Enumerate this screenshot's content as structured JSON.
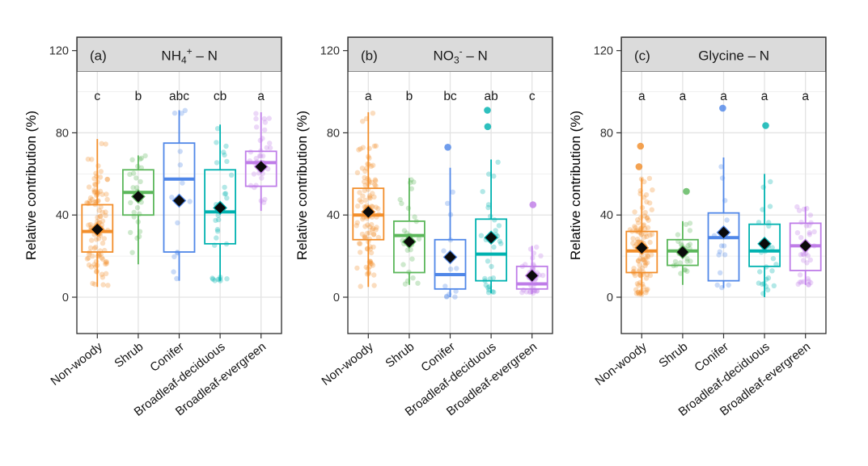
{
  "figure": {
    "y_axis_label": "Relative contribution (%)",
    "y_ticks": [
      0,
      40,
      80,
      120
    ],
    "y_minor_gridlines": [
      20,
      60,
      100
    ],
    "categories": [
      "Non-woody",
      "Shrub",
      "Conifer",
      "Broadleaf-deciduous",
      "Broadleaf-evergreen"
    ],
    "category_colors": {
      "Non-woody": "#F28E2B",
      "Shrub": "#5CB75B",
      "Conifer": "#5087E8",
      "Broadleaf-deciduous": "#00B2B0",
      "Broadleaf-evergreen": "#BF7DE8"
    },
    "strip_fill": "#DBDBDB",
    "panel_border_color": "#2B2B2B",
    "major_gridline_color": "#E3E3E3",
    "minor_gridline_color": "#F1F1F1"
  },
  "chart_data": [
    {
      "type": "boxplot",
      "panel_label": "(a)",
      "title": "NH4+ – N",
      "title_rich": [
        {
          "t": "NH"
        },
        {
          "sub": "4"
        },
        {
          "sup": "+"
        },
        {
          "t": " – N"
        }
      ],
      "ylabel": "Relative contribution (%)",
      "yticks": [
        0,
        40,
        80,
        120
      ],
      "sig_letters": [
        "c",
        "b",
        "abc",
        "cb",
        "a"
      ],
      "sig_letter_y": 98,
      "groups": [
        {
          "category": "Non-woody",
          "color": "#F28E2B",
          "whisker_low": 5,
          "q1": 22,
          "median": 32,
          "q3": 45,
          "whisker_high": 77,
          "mean": 33,
          "outliers": [],
          "n_points": 110
        },
        {
          "category": "Shrub",
          "color": "#5CB75B",
          "whisker_low": 16,
          "q1": 40,
          "median": 51,
          "q3": 62,
          "whisker_high": 69,
          "mean": 49,
          "outliers": [],
          "n_points": 26
        },
        {
          "category": "Conifer",
          "color": "#5087E8",
          "whisker_low": 8,
          "q1": 22,
          "median": 57.5,
          "q3": 75,
          "whisker_high": 91,
          "mean": 47,
          "outliers": [],
          "n_points": 14
        },
        {
          "category": "Broadleaf-deciduous",
          "color": "#00B2B0",
          "whisker_low": 8,
          "q1": 26,
          "median": 41.5,
          "q3": 62,
          "whisker_high": 84,
          "mean": 43.5,
          "outliers": [],
          "n_points": 30
        },
        {
          "category": "Broadleaf-evergreen",
          "color": "#BF7DE8",
          "whisker_low": 42,
          "q1": 54,
          "median": 65.5,
          "q3": 71,
          "whisker_high": 90,
          "mean": 63.5,
          "outliers": [],
          "n_points": 36
        }
      ]
    },
    {
      "type": "boxplot",
      "panel_label": "(b)",
      "title": "NO3- – N",
      "title_rich": [
        {
          "t": "NO"
        },
        {
          "sub": "3"
        },
        {
          "sup": "-"
        },
        {
          "t": " – N"
        }
      ],
      "ylabel": "Relative contribution (%)",
      "yticks": [
        0,
        40,
        80,
        120
      ],
      "sig_letters": [
        "a",
        "b",
        "bc",
        "ab",
        "c"
      ],
      "sig_letter_y": 98,
      "groups": [
        {
          "category": "Non-woody",
          "color": "#F28E2B",
          "whisker_low": 5,
          "q1": 28,
          "median": 40,
          "q3": 53,
          "whisker_high": 90,
          "mean": 41.5,
          "outliers": [],
          "n_points": 110
        },
        {
          "category": "Shrub",
          "color": "#5CB75B",
          "whisker_low": 6,
          "q1": 12,
          "median": 30,
          "q3": 37,
          "whisker_high": 58,
          "mean": 27,
          "outliers": [],
          "n_points": 26
        },
        {
          "category": "Conifer",
          "color": "#5087E8",
          "whisker_low": 0,
          "q1": 4,
          "median": 11,
          "q3": 28,
          "whisker_high": 63,
          "mean": 19.5,
          "outliers": [
            73
          ],
          "n_points": 14
        },
        {
          "category": "Broadleaf-deciduous",
          "color": "#00B2B0",
          "whisker_low": 2,
          "q1": 8,
          "median": 21,
          "q3": 38,
          "whisker_high": 67,
          "mean": 29,
          "outliers": [
            83,
            91
          ],
          "n_points": 30
        },
        {
          "category": "Broadleaf-evergreen",
          "color": "#BF7DE8",
          "whisker_low": 1.5,
          "q1": 4,
          "median": 6.5,
          "q3": 15,
          "whisker_high": 25,
          "mean": 10.5,
          "outliers": [
            45
          ],
          "n_points": 36
        }
      ]
    },
    {
      "type": "boxplot",
      "panel_label": "(c)",
      "title": "Glycine – N",
      "title_rich": [
        {
          "t": "Glycine – N"
        }
      ],
      "ylabel": "Relative contribution (%)",
      "yticks": [
        0,
        40,
        80,
        120
      ],
      "sig_letters": [
        "a",
        "a",
        "a",
        "a",
        "a"
      ],
      "sig_letter_y": 98,
      "groups": [
        {
          "category": "Non-woody",
          "color": "#F28E2B",
          "whisker_low": 1,
          "q1": 12,
          "median": 22.5,
          "q3": 32,
          "whisker_high": 58,
          "mean": 24,
          "outliers": [
            63.5,
            73.5
          ],
          "n_points": 110
        },
        {
          "category": "Shrub",
          "color": "#5CB75B",
          "whisker_low": 6,
          "q1": 15.5,
          "median": 22.5,
          "q3": 28,
          "whisker_high": 37,
          "mean": 22,
          "outliers": [
            51.5
          ],
          "n_points": 26
        },
        {
          "category": "Conifer",
          "color": "#5087E8",
          "whisker_low": 4.5,
          "q1": 8,
          "median": 29,
          "q3": 41,
          "whisker_high": 68,
          "mean": 31.5,
          "outliers": [
            92
          ],
          "n_points": 14
        },
        {
          "category": "Broadleaf-deciduous",
          "color": "#00B2B0",
          "whisker_low": 0,
          "q1": 15,
          "median": 22.5,
          "q3": 35.5,
          "whisker_high": 60,
          "mean": 26,
          "outliers": [
            83.5
          ],
          "n_points": 30
        },
        {
          "category": "Broadleaf-evergreen",
          "color": "#BF7DE8",
          "whisker_low": 6,
          "q1": 13,
          "median": 25,
          "q3": 36,
          "whisker_high": 44,
          "mean": 25,
          "outliers": [],
          "n_points": 36
        }
      ]
    }
  ]
}
